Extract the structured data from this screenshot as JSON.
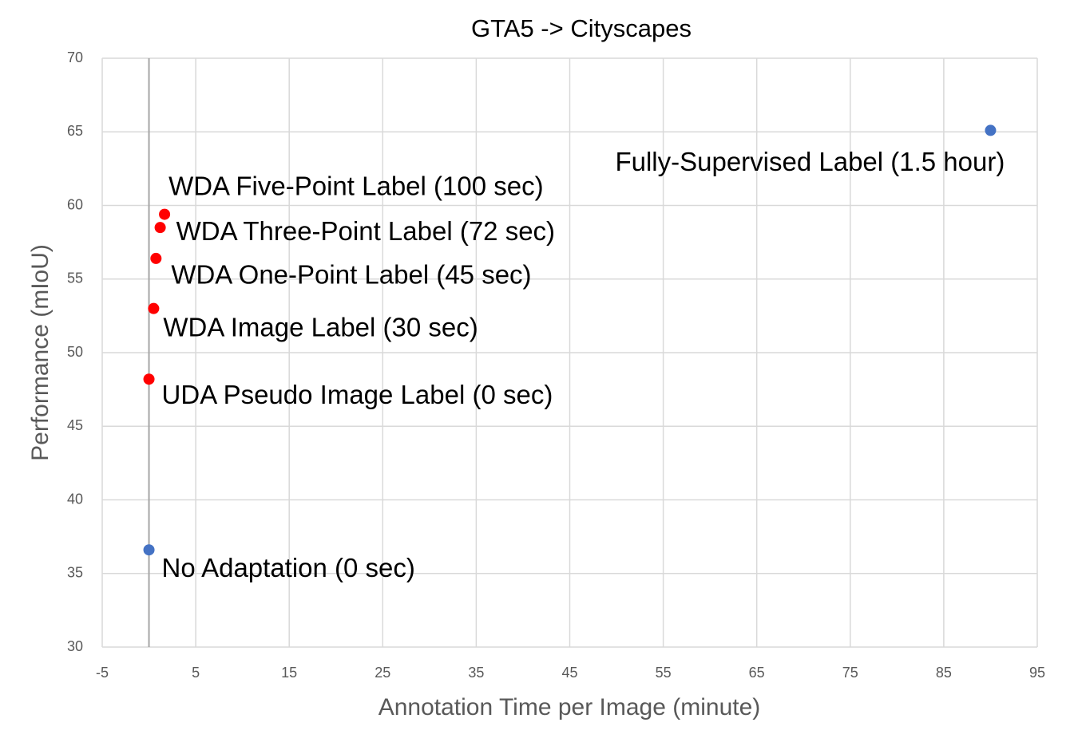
{
  "chart_data": {
    "type": "scatter",
    "title": "GTA5 -> Cityscapes",
    "x_label": "Annotation Time per Image (minute)",
    "y_label": "Performance (mIoU)",
    "points": [
      {
        "label": "No Adaptation (0 sec)",
        "x": 0,
        "y": 36.6,
        "color": "#4472c4"
      },
      {
        "label": "UDA Pseudo Image Label (0 sec)",
        "x": 0,
        "y": 48.2,
        "color": "#ff0000"
      },
      {
        "label": "WDA Image Label (30 sec)",
        "x": 0.5,
        "y": 53.0,
        "color": "#ff0000"
      },
      {
        "label": "WDA One-Point Label (45 sec)",
        "x": 0.75,
        "y": 56.4,
        "color": "#ff0000"
      },
      {
        "label": "WDA Three-Point Label (72 sec)",
        "x": 1.2,
        "y": 58.5,
        "color": "#ff0000"
      },
      {
        "label": "WDA Five-Point Label (100 sec)",
        "x": 1.667,
        "y": 59.4,
        "color": "#ff0000"
      },
      {
        "label": "Fully-Supervised Label (1.5 hour)",
        "x": 90,
        "y": 65.1,
        "color": "#4472c4"
      }
    ],
    "xlim": [
      -5,
      95
    ],
    "xticks": [
      -5,
      5,
      15,
      25,
      35,
      45,
      55,
      65,
      75,
      85,
      95
    ],
    "ylim": [
      30,
      70
    ],
    "yticks": [
      30,
      35,
      40,
      45,
      50,
      55,
      60,
      65,
      70
    ],
    "grid": true
  }
}
